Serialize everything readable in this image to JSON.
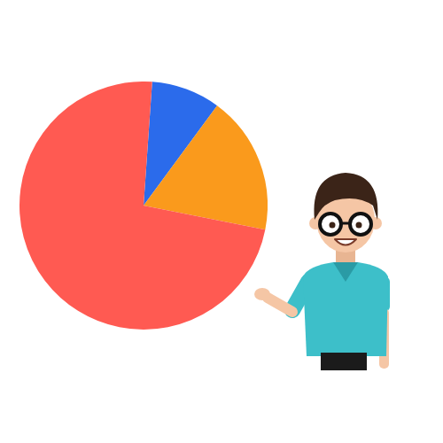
{
  "chart_data": {
    "type": "pie",
    "categories": [
      null,
      null,
      null
    ],
    "values": [
      9,
      18,
      73
    ],
    "colors": [
      "#2b6beb",
      "#fa9a1c",
      "#ff5a52"
    ]
  }
}
